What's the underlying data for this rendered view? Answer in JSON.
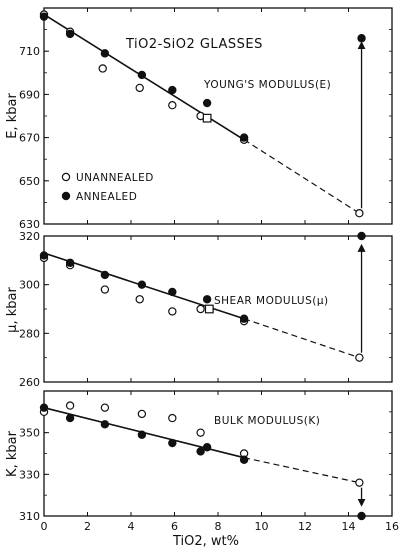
{
  "chart_data": [
    {
      "type": "scatter",
      "title": "TiO2-SiO2 GLASSES",
      "label": "YOUNG'S MODULUS(E)",
      "ylabel": "E, kbar",
      "xlabel": "",
      "xlim": [
        0,
        16
      ],
      "ylim": [
        630,
        730
      ],
      "yticks": [
        630,
        650,
        670,
        690,
        710
      ],
      "xticks": [
        0,
        2,
        4,
        6,
        8,
        10,
        12,
        14,
        16
      ],
      "legend": {
        "placement": "bottom-left",
        "entries": [
          {
            "name": "UNANNEALED",
            "marker": "open-circle"
          },
          {
            "name": "ANNEALED",
            "marker": "filled-circle"
          }
        ]
      },
      "series": [
        {
          "name": "UNANNEALED",
          "marker": "open-circle",
          "points": [
            [
              0,
              727
            ],
            [
              1.2,
              719
            ],
            [
              2.7,
              702
            ],
            [
              4.4,
              693
            ],
            [
              5.9,
              685
            ],
            [
              7.2,
              680
            ],
            [
              9.2,
              669
            ],
            [
              14.5,
              635
            ]
          ]
        },
        {
          "name": "ANNEALED",
          "marker": "filled-circle",
          "points": [
            [
              0,
              726
            ],
            [
              1.2,
              718
            ],
            [
              2.8,
              709
            ],
            [
              4.5,
              699
            ],
            [
              5.9,
              692
            ],
            [
              7.5,
              686
            ],
            [
              9.2,
              670
            ],
            [
              14.6,
              716
            ]
          ]
        },
        {
          "name": "square",
          "marker": "open-square",
          "points": [
            [
              7.5,
              679
            ]
          ]
        }
      ],
      "fit_line": {
        "solid": [
          [
            0,
            727
          ],
          [
            9.2,
            669
          ]
        ],
        "dashed": [
          [
            9.2,
            669
          ],
          [
            14.5,
            635
          ]
        ]
      },
      "arrow": {
        "x": 14.6,
        "from": 635,
        "to": 716
      }
    },
    {
      "type": "scatter",
      "label": "SHEAR MODULUS(μ)",
      "ylabel": "μ, kbar",
      "xlabel": "",
      "xlim": [
        0,
        16
      ],
      "ylim": [
        260,
        320
      ],
      "yticks": [
        260,
        280,
        300,
        320
      ],
      "xticks": [
        0,
        2,
        4,
        6,
        8,
        10,
        12,
        14,
        16
      ],
      "series": [
        {
          "name": "UNANNEALED",
          "marker": "open-circle",
          "points": [
            [
              0,
              311
            ],
            [
              1.2,
              308
            ],
            [
              2.8,
              298
            ],
            [
              4.4,
              294
            ],
            [
              5.9,
              289
            ],
            [
              7.2,
              290
            ],
            [
              9.2,
              285
            ],
            [
              14.5,
              270
            ]
          ]
        },
        {
          "name": "ANNEALED",
          "marker": "filled-circle",
          "points": [
            [
              0,
              312
            ],
            [
              1.2,
              309
            ],
            [
              2.8,
              304
            ],
            [
              4.5,
              300
            ],
            [
              5.9,
              297
            ],
            [
              7.5,
              294
            ],
            [
              9.2,
              286
            ],
            [
              14.6,
              320
            ]
          ]
        },
        {
          "name": "square",
          "marker": "open-square",
          "points": [
            [
              7.6,
              290
            ]
          ]
        }
      ],
      "fit_line": {
        "solid": [
          [
            0,
            313
          ],
          [
            9.2,
            286
          ]
        ],
        "dashed": [
          [
            9.2,
            286
          ],
          [
            14.5,
            270
          ]
        ]
      },
      "arrow": {
        "x": 14.6,
        "from": 270,
        "to": 318
      }
    },
    {
      "type": "scatter",
      "label": "BULK MODULUS(K)",
      "ylabel": "K, kbar",
      "xlabel": "TiO2, wt%",
      "xlim": [
        0,
        16
      ],
      "ylim": [
        310,
        370
      ],
      "yticks": [
        310,
        330,
        350
      ],
      "xticks": [
        0,
        2,
        4,
        6,
        8,
        10,
        12,
        14,
        16
      ],
      "xticklabels": [
        "0",
        "2",
        "4",
        "6",
        "8",
        "10",
        "12",
        "14",
        "16"
      ],
      "series": [
        {
          "name": "UNANNEALED",
          "marker": "open-circle",
          "points": [
            [
              0,
              360
            ],
            [
              1.2,
              363
            ],
            [
              2.8,
              362
            ],
            [
              4.5,
              359
            ],
            [
              5.9,
              357
            ],
            [
              7.2,
              350
            ],
            [
              9.2,
              340
            ],
            [
              14.5,
              326
            ]
          ]
        },
        {
          "name": "ANNEALED",
          "marker": "filled-circle",
          "points": [
            [
              0,
              362
            ],
            [
              1.2,
              357
            ],
            [
              2.8,
              354
            ],
            [
              4.5,
              349
            ],
            [
              5.9,
              345
            ],
            [
              7.2,
              341
            ],
            [
              7.5,
              343
            ],
            [
              9.2,
              337
            ],
            [
              14.6,
              310
            ]
          ]
        }
      ],
      "fit_line": {
        "solid": [
          [
            0,
            362
          ],
          [
            9.2,
            338
          ]
        ],
        "dashed": [
          [
            9.2,
            338
          ],
          [
            14.5,
            326
          ]
        ]
      },
      "arrow": {
        "x": 14.6,
        "from": 326,
        "to": 313
      }
    }
  ]
}
